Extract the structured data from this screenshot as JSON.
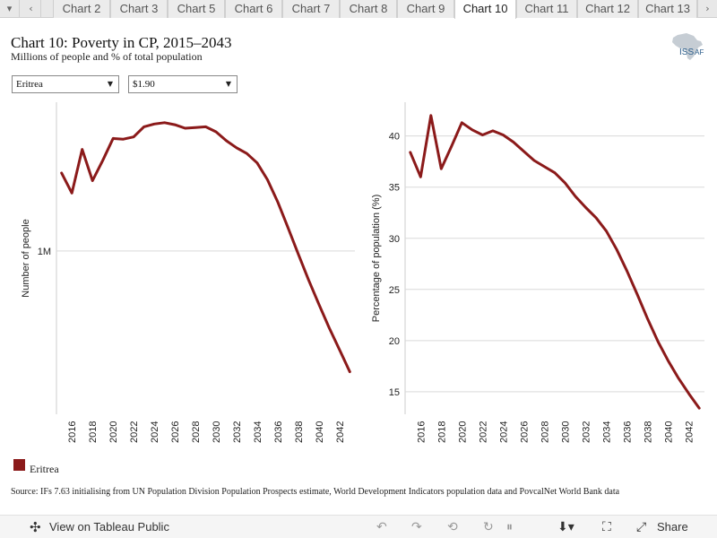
{
  "tabs": {
    "menu_glyph": "▾",
    "prev_glyph": "‹",
    "next_glyph": "›",
    "items": [
      "Chart 2",
      "Chart 3",
      "Chart 5",
      "Chart 6",
      "Chart 7",
      "Chart 8",
      "Chart 9",
      "Chart 10",
      "Chart 11",
      "Chart 12",
      "Chart 13"
    ],
    "active_index": 7
  },
  "header": {
    "title": "Chart 10: Poverty in CP, 2015–2043",
    "subtitle": "Millions of people and % of total population",
    "logo_text": "ISS",
    "logo_suffix": "AF"
  },
  "filters": {
    "country": "Eritrea",
    "threshold": "$1.90"
  },
  "colors": {
    "series": "#8b1a1a",
    "grid": "#d9d9d9",
    "logo": "#2b5d8a"
  },
  "chart_data": [
    {
      "type": "line",
      "ylabel": "Number of people",
      "yscale": "log",
      "yticks": [
        1000000
      ],
      "ytick_labels": [
        "1M"
      ],
      "xticks": [
        2016,
        2018,
        2020,
        2022,
        2024,
        2026,
        2028,
        2030,
        2032,
        2034,
        2036,
        2038,
        2040,
        2042
      ],
      "xlim": [
        2014.5,
        2043.5
      ],
      "ylim": [
        350000,
        2600000
      ],
      "series": [
        {
          "name": "Eritrea",
          "x": [
            2015,
            2016,
            2017,
            2018,
            2019,
            2020,
            2021,
            2022,
            2023,
            2024,
            2025,
            2026,
            2027,
            2028,
            2029,
            2030,
            2031,
            2032,
            2033,
            2034,
            2035,
            2036,
            2037,
            2038,
            2039,
            2040,
            2041,
            2042,
            2043
          ],
          "values": [
            1650000,
            1450000,
            1920000,
            1570000,
            1790000,
            2060000,
            2050000,
            2080000,
            2220000,
            2260000,
            2280000,
            2250000,
            2200000,
            2210000,
            2220000,
            2150000,
            2030000,
            1940000,
            1870000,
            1760000,
            1580000,
            1370000,
            1160000,
            980000,
            830000,
            710000,
            610000,
            530000,
            460000
          ]
        }
      ]
    },
    {
      "type": "line",
      "ylabel": "Percentage of population (%)",
      "yticks": [
        15,
        20,
        25,
        30,
        35,
        40
      ],
      "xticks": [
        2016,
        2018,
        2020,
        2022,
        2024,
        2026,
        2028,
        2030,
        2032,
        2034,
        2036,
        2038,
        2040,
        2042
      ],
      "xlim": [
        2014.5,
        2043.5
      ],
      "ylim": [
        12.8,
        43.3
      ],
      "series": [
        {
          "name": "Eritrea",
          "x": [
            2015,
            2016,
            2017,
            2018,
            2019,
            2020,
            2021,
            2022,
            2023,
            2024,
            2025,
            2026,
            2027,
            2028,
            2029,
            2030,
            2031,
            2032,
            2033,
            2034,
            2035,
            2036,
            2037,
            2038,
            2039,
            2040,
            2041,
            2042,
            2043
          ],
          "values": [
            38.4,
            36.0,
            42.0,
            36.8,
            39.0,
            41.3,
            40.6,
            40.1,
            40.5,
            40.1,
            39.4,
            38.5,
            37.6,
            37.0,
            36.4,
            35.4,
            34.1,
            33.0,
            32.0,
            30.7,
            28.9,
            26.8,
            24.5,
            22.1,
            19.9,
            18.0,
            16.3,
            14.8,
            13.4
          ]
        }
      ]
    }
  ],
  "legend": {
    "label": "Eritrea"
  },
  "source": "Source: IFs 7.63 initialising from UN Population Division Population Prospects estimate, World Development Indicators population data and PovcalNet World Bank data",
  "bottombar": {
    "view_label": "View on Tableau Public",
    "share_label": "Share"
  }
}
